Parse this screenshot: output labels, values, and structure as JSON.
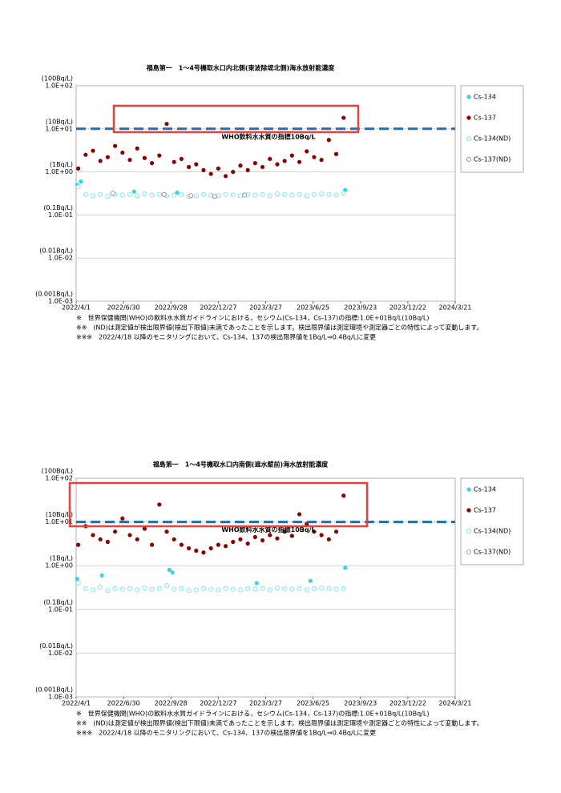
{
  "chart_data": [
    {
      "type": "scatter",
      "title": "福島第一　1～4号機取水口内北側(東波除堤北側)海水放射能濃度",
      "log_y": true,
      "ylim": [
        0.001,
        100
      ],
      "yticks": [
        {
          "value": 100,
          "label": "1.0E+02",
          "sublabel": "(100Bq/L)"
        },
        {
          "value": 10,
          "label": "1.0E+01",
          "sublabel": "(10Bq/L)"
        },
        {
          "value": 1,
          "label": "1.0E+00",
          "sublabel": "(1Bq/L)"
        },
        {
          "value": 0.1,
          "label": "1.0E-01",
          "sublabel": "(0.1Bq/L)"
        },
        {
          "value": 0.01,
          "label": "1.0E-02",
          "sublabel": "(0.01Bq/L)"
        },
        {
          "value": 0.001,
          "label": "1.0E-03",
          "sublabel": "(0.001Bq/L)"
        }
      ],
      "xlim": [
        "2022/4/1",
        "2024/3/21"
      ],
      "xticks": [
        "2022/4/1",
        "2022/6/30",
        "2022/9/28",
        "2022/12/27",
        "2023/3/27",
        "2023/6/25",
        "2023/9/23",
        "2023/12/22",
        "2024/3/21"
      ],
      "grid": true,
      "reference_line": {
        "value": 10,
        "label": "WHO飲料水水質の指標10Bq/L",
        "color": "#1f6fae"
      },
      "series": [
        {
          "name": "Cs-134",
          "color": "#33d6e8",
          "marker": "filled",
          "x": [
            "2022/4/3",
            "2022/4/10",
            "2022/7/20",
            "2022/10/10",
            "2023/8/25"
          ],
          "values": [
            0.5,
            0.6,
            0.35,
            0.33,
            0.38
          ]
        },
        {
          "name": "Cs-137",
          "color": "#8b0000",
          "marker": "filled",
          "x": [
            "2022/4/5",
            "2022/4/19",
            "2022/5/3",
            "2022/5/17",
            "2022/5/31",
            "2022/6/14",
            "2022/6/28",
            "2022/7/12",
            "2022/7/26",
            "2022/8/9",
            "2022/8/23",
            "2022/9/6",
            "2022/9/20",
            "2022/10/4",
            "2022/10/18",
            "2022/11/1",
            "2022/11/15",
            "2022/11/29",
            "2022/12/13",
            "2022/12/27",
            "2023/1/10",
            "2023/1/24",
            "2023/2/7",
            "2023/2/21",
            "2023/3/7",
            "2023/3/21",
            "2023/4/4",
            "2023/4/18",
            "2023/5/2",
            "2023/5/16",
            "2023/5/30",
            "2023/6/13",
            "2023/6/27",
            "2023/7/11",
            "2023/7/25",
            "2023/8/8",
            "2023/8/22"
          ],
          "values": [
            1.2,
            2.5,
            3.1,
            1.8,
            2.2,
            4.0,
            2.8,
            1.9,
            3.5,
            2.1,
            1.6,
            2.4,
            13,
            1.7,
            2.0,
            1.3,
            1.5,
            1.1,
            0.9,
            1.2,
            0.8,
            1.0,
            1.4,
            1.1,
            1.6,
            1.3,
            2.0,
            1.5,
            1.8,
            2.4,
            1.7,
            3.0,
            2.2,
            1.9,
            5.5,
            2.6,
            18
          ]
        },
        {
          "name": "Cs-134(ND)",
          "color": "#66e0ee",
          "marker": "open",
          "x": [
            "2022/4/5",
            "2022/4/19",
            "2022/5/3",
            "2022/5/17",
            "2022/5/31",
            "2022/6/14",
            "2022/6/28",
            "2022/7/12",
            "2022/7/26",
            "2022/8/9",
            "2022/8/23",
            "2022/9/6",
            "2022/9/20",
            "2022/10/4",
            "2022/10/18",
            "2022/11/1",
            "2022/11/15",
            "2022/11/29",
            "2022/12/13",
            "2022/12/27",
            "2023/1/10",
            "2023/1/24",
            "2023/2/7",
            "2023/2/21",
            "2023/3/7",
            "2023/3/21",
            "2023/4/4",
            "2023/4/18",
            "2023/5/2",
            "2023/5/16",
            "2023/5/30",
            "2023/6/13",
            "2023/6/27",
            "2023/7/11",
            "2023/7/25",
            "2023/8/8",
            "2023/8/22"
          ],
          "values": [
            0.45,
            0.3,
            0.28,
            0.3,
            0.27,
            0.3,
            0.29,
            0.3,
            0.28,
            0.31,
            0.29,
            0.3,
            0.28,
            0.29,
            0.3,
            0.27,
            0.28,
            0.3,
            0.29,
            0.28,
            0.3,
            0.29,
            0.28,
            0.3,
            0.29,
            0.3,
            0.28,
            0.31,
            0.3,
            0.29,
            0.3,
            0.28,
            0.3,
            0.31,
            0.3,
            0.29,
            0.32
          ]
        },
        {
          "name": "Cs-137(ND)",
          "color": "#9a7070",
          "marker": "open",
          "x": [
            "2022/6/10",
            "2022/9/15",
            "2022/11/5",
            "2022/12/20",
            "2023/2/15"
          ],
          "values": [
            0.32,
            0.3,
            0.28,
            0.27,
            0.29
          ]
        }
      ],
      "notes": [
        "※　世界保健機関(WHO)の飲料水水質ガイドラインにおける，セシウム(Cs-134，Cs-137)の指標:1.0E+01Bq/L(10Bq/L)",
        "※※　(ND)は測定値が検出限界値(検出下限値)未満であったことを示します。検出限界値は測定環境や測定器ごとの特性によって変動します。",
        "※※※　2022/4/18 以降のモニタリングにおいて、Cs-134、137の検出限界値を1Bq/L⇒0.4Bq/Lに変更"
      ]
    },
    {
      "type": "scatter",
      "title": "福島第一　1～4号機取水口内南側(遮水壁前)海水放射能濃度",
      "log_y": true,
      "ylim": [
        0.001,
        100
      ],
      "yticks": [
        {
          "value": 100,
          "label": "1.0E+02",
          "sublabel": "(100Bq/L)"
        },
        {
          "value": 10,
          "label": "1.0E+01",
          "sublabel": "(10Bq/L)"
        },
        {
          "value": 1,
          "label": "1.0E+00",
          "sublabel": "(1Bq/L)"
        },
        {
          "value": 0.1,
          "label": "1.0E-01",
          "sublabel": "(0.1Bq/L)"
        },
        {
          "value": 0.01,
          "label": "1.0E-02",
          "sublabel": "(0.01Bq/L)"
        },
        {
          "value": 0.001,
          "label": "1.0E-03",
          "sublabel": "(0.001Bq/L)"
        }
      ],
      "xlim": [
        "2022/4/1",
        "2024/3/21"
      ],
      "xticks": [
        "2022/4/1",
        "2022/6/30",
        "2022/9/28",
        "2022/12/27",
        "2023/3/27",
        "2023/6/25",
        "2023/9/23",
        "2023/12/22",
        "2024/3/21"
      ],
      "grid": true,
      "reference_line": {
        "value": 10,
        "label": "WHO飲料水水質の指標10Bq/L",
        "color": "#1f6fae"
      },
      "series": [
        {
          "name": "Cs-134",
          "color": "#33d6e8",
          "marker": "filled",
          "x": [
            "2022/4/3",
            "2022/5/20",
            "2022/9/25",
            "2022/10/1",
            "2023/3/10",
            "2023/6/20",
            "2023/8/25"
          ],
          "values": [
            0.5,
            0.6,
            0.8,
            0.7,
            0.4,
            0.45,
            0.9
          ]
        },
        {
          "name": "Cs-137",
          "color": "#8b0000",
          "marker": "filled",
          "x": [
            "2022/4/5",
            "2022/4/19",
            "2022/5/3",
            "2022/5/17",
            "2022/5/31",
            "2022/6/14",
            "2022/6/28",
            "2022/7/12",
            "2022/7/26",
            "2022/8/9",
            "2022/8/23",
            "2022/9/6",
            "2022/9/20",
            "2022/10/4",
            "2022/10/18",
            "2022/11/1",
            "2022/11/15",
            "2022/11/29",
            "2022/12/13",
            "2022/12/27",
            "2023/1/10",
            "2023/1/24",
            "2023/2/7",
            "2023/2/21",
            "2023/3/7",
            "2023/3/21",
            "2023/4/4",
            "2023/4/18",
            "2023/5/2",
            "2023/5/16",
            "2023/5/30",
            "2023/6/13",
            "2023/6/27",
            "2023/7/11",
            "2023/7/25",
            "2023/8/8",
            "2023/8/22"
          ],
          "values": [
            3,
            8,
            5,
            4,
            3.5,
            6,
            12,
            5,
            4,
            7,
            3,
            25,
            6,
            4,
            3,
            2.5,
            2.2,
            2,
            2.5,
            3,
            2.8,
            3.5,
            4,
            3.2,
            4.5,
            3.8,
            5,
            4.2,
            6,
            4.8,
            15,
            9,
            6,
            5,
            4,
            6,
            40
          ]
        },
        {
          "name": "Cs-134(ND)",
          "color": "#66e0ee",
          "marker": "open",
          "x": [
            "2022/4/5",
            "2022/4/19",
            "2022/5/3",
            "2022/5/17",
            "2022/5/31",
            "2022/6/14",
            "2022/6/28",
            "2022/7/12",
            "2022/7/26",
            "2022/8/9",
            "2022/8/23",
            "2022/9/6",
            "2022/9/20",
            "2022/10/4",
            "2022/10/18",
            "2022/11/1",
            "2022/11/15",
            "2022/11/29",
            "2022/12/13",
            "2022/12/27",
            "2023/1/10",
            "2023/1/24",
            "2023/2/7",
            "2023/2/21",
            "2023/3/7",
            "2023/3/21",
            "2023/4/4",
            "2023/4/18",
            "2023/5/2",
            "2023/5/16",
            "2023/5/30",
            "2023/6/13",
            "2023/6/27",
            "2023/7/11",
            "2023/7/25",
            "2023/8/8",
            "2023/8/22"
          ],
          "values": [
            0.4,
            0.3,
            0.28,
            0.32,
            0.27,
            0.3,
            0.29,
            0.3,
            0.28,
            0.31,
            0.29,
            0.3,
            0.35,
            0.29,
            0.3,
            0.27,
            0.28,
            0.3,
            0.29,
            0.28,
            0.3,
            0.29,
            0.28,
            0.3,
            0.29,
            0.3,
            0.28,
            0.31,
            0.3,
            0.29,
            0.3,
            0.28,
            0.3,
            0.31,
            0.3,
            0.29,
            0.3
          ]
        },
        {
          "name": "Cs-137(ND)",
          "color": "#c08080",
          "marker": "open",
          "x": [],
          "values": []
        }
      ],
      "notes": [
        "※　世界保健機関(WHO)の飲料水水質ガイドラインにおける，セシウム(Cs-134，Cs-137)の指標:1.0E+01Bq/L(10Bq/L)",
        "※※　(ND)は測定値が検出限界値(検出下限値)未満であったことを示します。検出限界値は測定環境や測定器ごとの特性によって変動します。",
        "※※※　2022/4/18 以降のモニタリングにおいて、Cs-134、137の検出限界値を1Bq/L⇒0.4Bq/Lに変更"
      ]
    }
  ]
}
